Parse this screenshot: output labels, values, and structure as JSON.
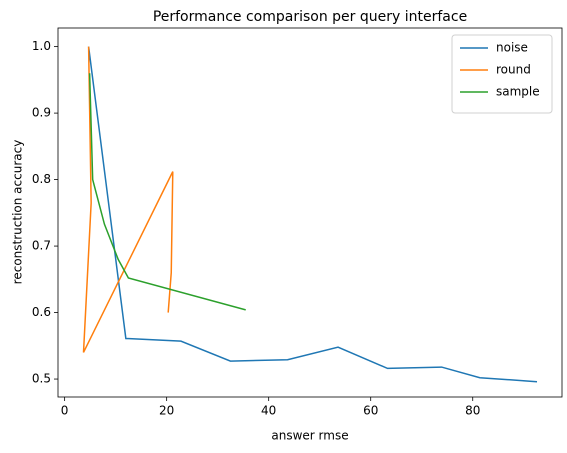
{
  "chart_data": {
    "type": "line",
    "title": "Performance comparison per query interface",
    "x_label": "answer rmse",
    "y_label": "reconstruction accuracy",
    "xlim": [
      -1.3,
      97.5
    ],
    "ylim": [
      0.473,
      1.028
    ],
    "xticks": [
      0,
      20,
      40,
      60,
      80
    ],
    "yticks": [
      {
        "value": 0.5,
        "label": "0.5"
      },
      {
        "value": 0.6,
        "label": "0.6"
      },
      {
        "value": 0.7,
        "label": "0.7"
      },
      {
        "value": 0.8,
        "label": "0.8"
      },
      {
        "value": 0.9,
        "label": "0.9"
      },
      {
        "value": 1.0,
        "label": "1.0"
      }
    ],
    "legend": "upper right",
    "series": [
      {
        "name": "noise",
        "color": "#1f77b4",
        "x": [
          4.7,
          12,
          22.8,
          32.5,
          43.7,
          53.6,
          63.3,
          73.9,
          81.4,
          92.6
        ],
        "values": [
          1.0,
          0.561,
          0.557,
          0.527,
          0.529,
          0.548,
          0.516,
          0.518,
          0.502,
          0.496
        ]
      },
      {
        "name": "round",
        "color": "#ff7f0e",
        "x": [
          4.7,
          5.2,
          3.7,
          21.2,
          20.9,
          20.3
        ],
        "values": [
          1.0,
          0.765,
          0.54,
          0.812,
          0.66,
          0.6
        ]
      },
      {
        "name": "sample",
        "color": "#2ca02c",
        "x": [
          4.9,
          5.5,
          7.8,
          10.5,
          12.5,
          35.5
        ],
        "values": [
          0.96,
          0.8,
          0.733,
          0.68,
          0.652,
          0.604
        ]
      }
    ]
  }
}
